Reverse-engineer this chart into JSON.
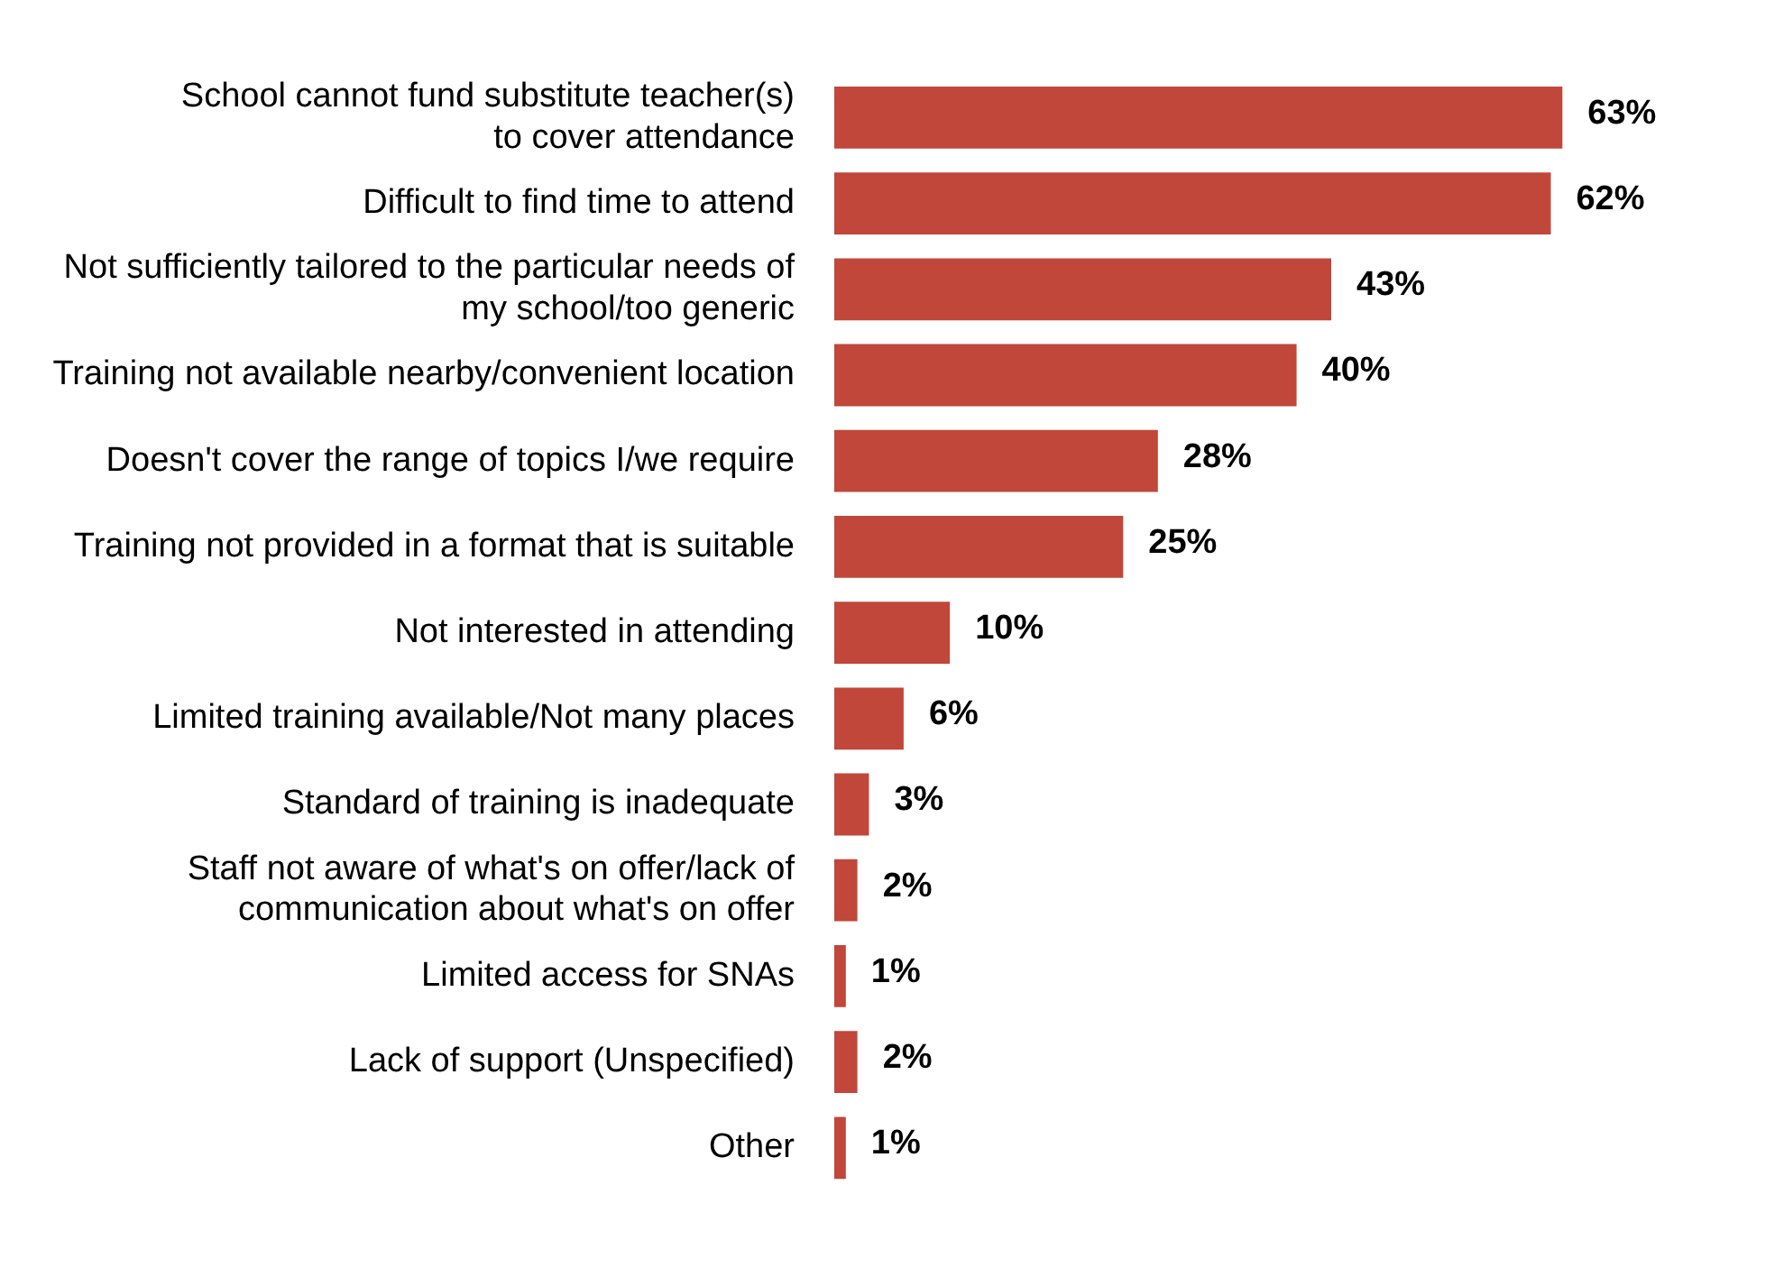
{
  "chart_data": {
    "type": "bar",
    "orientation": "horizontal",
    "categories": [
      "School cannot fund substitute teacher(s)\nto cover attendance",
      "Difficult to find time to attend",
      "Not sufficiently tailored to the particular needs of\nmy school/too generic",
      "Training not available nearby/convenient location",
      "Doesn't cover the range of topics I/we require",
      "Training not provided in a format that is suitable",
      "Not interested in attending",
      "Limited training available/Not many places",
      "Standard of training is inadequate",
      "Staff not aware of what's on offer/lack of\ncommunication about what's on offer",
      "Limited access for SNAs",
      "Lack of support (Unspecified)",
      "Other"
    ],
    "values": [
      63,
      62,
      43,
      40,
      28,
      25,
      10,
      6,
      3,
      2,
      1,
      2,
      1
    ],
    "value_labels": [
      "63%",
      "62%",
      "43%",
      "40%",
      "28%",
      "25%",
      "10%",
      "6%",
      "3%",
      "2%",
      "1%",
      "2%",
      "1%"
    ],
    "color": "#c0473a",
    "grid": false,
    "legend": false,
    "tick_labels": "y"
  }
}
